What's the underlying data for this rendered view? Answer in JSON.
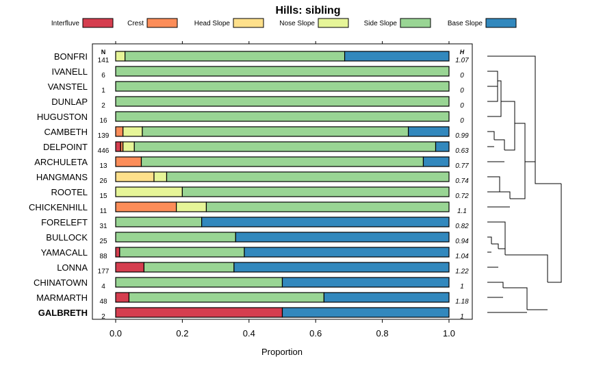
{
  "chart_data": {
    "type": "bar",
    "orientation": "horizontal",
    "stacked": true,
    "title": "Hills: sibling",
    "xlabel": "Proportion",
    "ylabel": "",
    "xlim": [
      0,
      1
    ],
    "xticks": [
      "0.0",
      "0.2",
      "0.4",
      "0.6",
      "0.8",
      "1.0"
    ],
    "xtick_values": [
      0,
      0.2,
      0.4,
      0.6,
      0.8,
      1.0
    ],
    "n_header": "N",
    "h_header": "H",
    "legend_position": "top",
    "categories": [
      "BONFRI",
      "IVANELL",
      "VANSTEL",
      "DUNLAP",
      "HUGUSTON",
      "CAMBETH",
      "DELPOINT",
      "ARCHULETA",
      "HANGMANS",
      "ROOTEL",
      "CHICKENHILL",
      "FORELEFT",
      "BULLOCK",
      "YAMACALL",
      "LONNA",
      "CHINATOWN",
      "MARMARTH",
      "GALBRETH"
    ],
    "highlight": "GALBRETH",
    "n": [
      "141",
      "6",
      "1",
      "2",
      "16",
      "139",
      "446",
      "13",
      "26",
      "15",
      "11",
      "31",
      "25",
      "88",
      "177",
      "4",
      "48",
      "2"
    ],
    "h": [
      "1.07",
      "0",
      "0",
      "0",
      "0",
      "0.99",
      "0.63",
      "0.77",
      "0.74",
      "0.72",
      "1.1",
      "0.82",
      "0.94",
      "1.04",
      "1.22",
      "1",
      "1.18",
      "1"
    ],
    "series": [
      {
        "name": "Interfluve",
        "color": "#d53e4f",
        "values": [
          0,
          0,
          0,
          0,
          0,
          0,
          0.015,
          0,
          0,
          0,
          0,
          0,
          0,
          0.012,
          0.085,
          0,
          0.04,
          0.5
        ]
      },
      {
        "name": "Crest",
        "color": "#fc8d59",
        "values": [
          0,
          0,
          0,
          0,
          0,
          0.022,
          0.007,
          0.077,
          0,
          0,
          0.182,
          0,
          0,
          0,
          0,
          0,
          0,
          0
        ]
      },
      {
        "name": "Head Slope",
        "color": "#fee08b",
        "values": [
          0,
          0,
          0,
          0,
          0,
          0,
          0,
          0,
          0.115,
          0,
          0,
          0,
          0,
          0,
          0,
          0,
          0,
          0
        ]
      },
      {
        "name": "Nose Slope",
        "color": "#e6f598",
        "values": [
          0.028,
          0,
          0,
          0,
          0,
          0.058,
          0.034,
          0,
          0.038,
          0.2,
          0.09,
          0,
          0,
          0,
          0,
          0,
          0,
          0
        ]
      },
      {
        "name": "Side Slope",
        "color": "#99d594",
        "values": [
          0.659,
          1,
          1,
          1,
          1,
          0.798,
          0.904,
          0.846,
          0.847,
          0.8,
          0.728,
          0.258,
          0.36,
          0.374,
          0.27,
          0.5,
          0.585,
          0
        ]
      },
      {
        "name": "Base Slope",
        "color": "#3288bd",
        "values": [
          0.313,
          0,
          0,
          0,
          0,
          0.122,
          0.04,
          0.077,
          0,
          0,
          0,
          0.742,
          0.64,
          0.614,
          0.645,
          0.5,
          0.375,
          0.5
        ]
      }
    ]
  }
}
